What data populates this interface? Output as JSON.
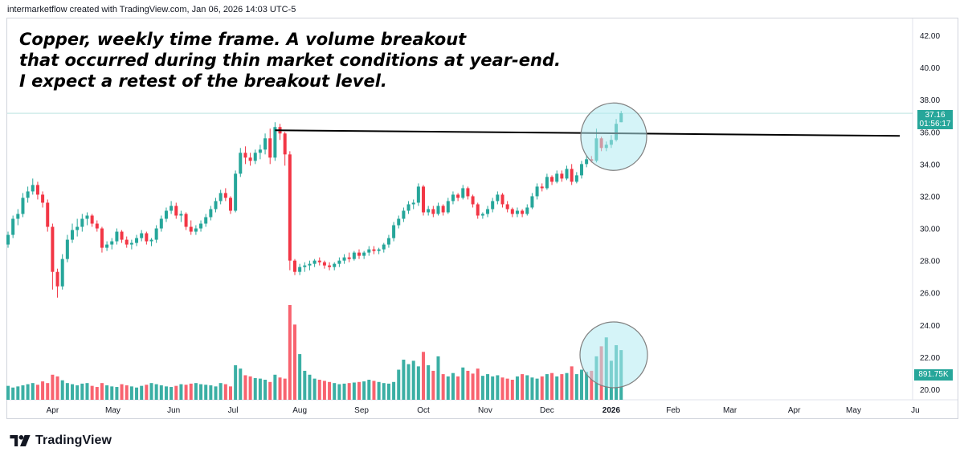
{
  "header": {
    "credit": "intermarketflow created with TradingView.com, Jan 06, 2026 14:03 UTC-5"
  },
  "annotation": {
    "lines": [
      "Copper, weekly time frame. A volume breakout",
      "that occurred during thin market conditions at year-end.",
      "I expect a retest of the breakout level."
    ]
  },
  "badges": {
    "last_price": "37.16",
    "countdown": "01:56:17",
    "last_volume": "891.75K"
  },
  "brand": {
    "name": "TradingView"
  },
  "colors": {
    "up": "#26a69a",
    "down": "#f23645",
    "vol_up": "#26a69a",
    "vol_down": "#f7525f",
    "circle_fill": "#b2ebf2",
    "circle_stroke": "#808080",
    "line": "#000000"
  },
  "chart_data": {
    "type": "candlestick",
    "title": "Copper, weekly time frame",
    "price_axis": {
      "ticks": [
        "42.00",
        "40.00",
        "38.00",
        "36.00",
        "34.00",
        "32.00",
        "30.00",
        "28.00",
        "26.00",
        "24.00",
        "22.00",
        "20.00"
      ],
      "range": [
        19.5,
        43.0
      ]
    },
    "time_axis": {
      "ticks": [
        "Apr",
        "May",
        "Jun",
        "Jul",
        "Aug",
        "Sep",
        "Oct",
        "Nov",
        "Dec",
        "2026",
        "Feb",
        "Mar",
        "Apr",
        "May",
        "Ju"
      ]
    },
    "candles": [
      [
        29.0,
        29.8,
        28.8,
        29.6
      ],
      [
        29.6,
        30.8,
        29.4,
        30.6
      ],
      [
        30.6,
        31.2,
        30.2,
        30.9
      ],
      [
        30.9,
        32.2,
        30.7,
        31.9
      ],
      [
        31.9,
        32.6,
        31.6,
        32.3
      ],
      [
        32.3,
        33.1,
        32.1,
        32.7
      ],
      [
        32.7,
        32.9,
        31.8,
        32.1
      ],
      [
        32.1,
        32.3,
        31.3,
        31.6
      ],
      [
        31.6,
        31.8,
        29.8,
        30.1
      ],
      [
        30.1,
        30.3,
        26.2,
        27.3
      ],
      [
        27.3,
        27.5,
        25.7,
        26.4
      ],
      [
        26.4,
        28.4,
        26.2,
        28.1
      ],
      [
        28.1,
        29.6,
        27.9,
        29.3
      ],
      [
        29.3,
        30.3,
        29.1,
        29.9
      ],
      [
        29.9,
        30.6,
        29.5,
        30.1
      ],
      [
        30.1,
        30.9,
        29.8,
        30.6
      ],
      [
        30.6,
        31.0,
        30.2,
        30.8
      ],
      [
        30.8,
        30.9,
        30.1,
        30.3
      ],
      [
        30.3,
        30.5,
        29.8,
        30.0
      ],
      [
        30.0,
        30.1,
        28.5,
        28.8
      ],
      [
        28.8,
        29.2,
        28.6,
        29.0
      ],
      [
        29.0,
        29.4,
        28.7,
        29.2
      ],
      [
        29.2,
        30.0,
        29.0,
        29.8
      ],
      [
        29.8,
        29.9,
        29.1,
        29.3
      ],
      [
        29.3,
        29.5,
        28.8,
        29.0
      ],
      [
        29.0,
        29.3,
        28.7,
        29.1
      ],
      [
        29.1,
        29.6,
        28.9,
        29.4
      ],
      [
        29.4,
        29.9,
        29.2,
        29.7
      ],
      [
        29.7,
        29.8,
        29.0,
        29.2
      ],
      [
        29.2,
        29.4,
        28.9,
        29.3
      ],
      [
        29.3,
        30.2,
        29.1,
        30.0
      ],
      [
        30.0,
        30.8,
        29.8,
        30.6
      ],
      [
        30.6,
        31.3,
        30.4,
        31.1
      ],
      [
        31.1,
        31.7,
        30.9,
        31.4
      ],
      [
        31.4,
        31.6,
        30.6,
        30.8
      ],
      [
        30.8,
        31.1,
        30.4,
        30.9
      ],
      [
        30.9,
        31.0,
        29.9,
        30.1
      ],
      [
        30.1,
        30.5,
        29.6,
        29.8
      ],
      [
        29.8,
        30.2,
        29.6,
        30.0
      ],
      [
        30.0,
        30.5,
        29.8,
        30.3
      ],
      [
        30.3,
        30.9,
        30.1,
        30.7
      ],
      [
        30.7,
        31.4,
        30.5,
        31.2
      ],
      [
        31.2,
        31.9,
        31.0,
        31.7
      ],
      [
        31.7,
        32.4,
        31.5,
        32.2
      ],
      [
        32.2,
        32.5,
        31.7,
        31.9
      ],
      [
        31.9,
        32.0,
        30.9,
        31.1
      ],
      [
        31.1,
        33.6,
        31.0,
        33.4
      ],
      [
        33.4,
        35.0,
        33.2,
        34.7
      ],
      [
        34.7,
        35.1,
        34.0,
        34.4
      ],
      [
        34.4,
        34.7,
        33.9,
        34.2
      ],
      [
        34.2,
        34.9,
        34.0,
        34.7
      ],
      [
        34.7,
        35.2,
        34.3,
        34.9
      ],
      [
        34.9,
        35.9,
        34.6,
        35.6
      ],
      [
        35.6,
        36.2,
        34.0,
        34.4
      ],
      [
        34.4,
        36.6,
        34.2,
        36.3
      ],
      [
        36.3,
        36.5,
        35.5,
        35.9
      ],
      [
        35.9,
        36.0,
        33.9,
        34.6
      ],
      [
        34.6,
        34.8,
        27.4,
        28.0
      ],
      [
        28.0,
        28.1,
        27.1,
        27.3
      ],
      [
        27.3,
        27.8,
        27.1,
        27.6
      ],
      [
        27.6,
        27.9,
        27.3,
        27.7
      ],
      [
        27.7,
        28.0,
        27.4,
        27.8
      ],
      [
        27.8,
        28.1,
        27.6,
        28.0
      ],
      [
        28.0,
        28.2,
        27.7,
        27.9
      ],
      [
        27.9,
        28.0,
        27.5,
        27.7
      ],
      [
        27.7,
        27.9,
        27.4,
        27.6
      ],
      [
        27.6,
        27.9,
        27.4,
        27.8
      ],
      [
        27.8,
        28.2,
        27.6,
        28.0
      ],
      [
        28.0,
        28.4,
        27.8,
        28.2
      ],
      [
        28.2,
        28.5,
        27.9,
        28.1
      ],
      [
        28.1,
        28.6,
        28.0,
        28.5
      ],
      [
        28.5,
        28.7,
        28.1,
        28.3
      ],
      [
        28.3,
        28.6,
        28.1,
        28.5
      ],
      [
        28.5,
        28.9,
        28.3,
        28.7
      ],
      [
        28.7,
        28.9,
        28.4,
        28.6
      ],
      [
        28.6,
        28.8,
        28.4,
        28.7
      ],
      [
        28.7,
        29.1,
        28.5,
        29.0
      ],
      [
        29.0,
        29.6,
        28.8,
        29.4
      ],
      [
        29.4,
        30.4,
        29.2,
        30.2
      ],
      [
        30.2,
        30.8,
        30.0,
        30.6
      ],
      [
        30.6,
        31.3,
        30.4,
        31.1
      ],
      [
        31.1,
        31.7,
        30.9,
        31.5
      ],
      [
        31.5,
        31.8,
        31.2,
        31.6
      ],
      [
        31.6,
        32.8,
        31.4,
        32.6
      ],
      [
        32.6,
        32.7,
        30.8,
        31.0
      ],
      [
        31.0,
        31.4,
        30.8,
        31.2
      ],
      [
        31.2,
        31.4,
        30.7,
        30.9
      ],
      [
        30.9,
        31.6,
        30.8,
        31.4
      ],
      [
        31.4,
        31.5,
        30.8,
        31.0
      ],
      [
        31.0,
        31.9,
        30.9,
        31.7
      ],
      [
        31.7,
        32.3,
        31.5,
        32.1
      ],
      [
        32.1,
        32.2,
        31.7,
        31.9
      ],
      [
        31.9,
        32.7,
        31.8,
        32.5
      ],
      [
        32.5,
        32.6,
        31.8,
        32.0
      ],
      [
        32.0,
        32.1,
        31.3,
        31.5
      ],
      [
        31.5,
        31.6,
        30.6,
        30.8
      ],
      [
        30.8,
        31.0,
        30.6,
        30.9
      ],
      [
        30.9,
        31.4,
        30.7,
        31.2
      ],
      [
        31.2,
        31.9,
        31.0,
        31.7
      ],
      [
        31.7,
        32.3,
        31.5,
        32.1
      ],
      [
        32.1,
        32.2,
        31.3,
        31.5
      ],
      [
        31.5,
        31.7,
        31.0,
        31.2
      ],
      [
        31.2,
        31.3,
        30.7,
        30.9
      ],
      [
        30.9,
        31.3,
        30.7,
        31.1
      ],
      [
        31.1,
        31.2,
        30.7,
        30.9
      ],
      [
        30.9,
        31.5,
        30.8,
        31.3
      ],
      [
        31.3,
        32.2,
        31.2,
        32.0
      ],
      [
        32.0,
        32.8,
        31.8,
        32.6
      ],
      [
        32.6,
        32.8,
        32.3,
        32.5
      ],
      [
        32.5,
        33.4,
        32.4,
        33.2
      ],
      [
        33.2,
        33.3,
        32.7,
        32.9
      ],
      [
        32.9,
        33.6,
        32.8,
        33.4
      ],
      [
        33.4,
        33.6,
        32.9,
        33.1
      ],
      [
        33.1,
        33.9,
        33.0,
        33.7
      ],
      [
        33.7,
        34.0,
        32.7,
        32.9
      ],
      [
        32.9,
        33.5,
        32.8,
        33.3
      ],
      [
        33.3,
        34.2,
        33.1,
        34.0
      ],
      [
        34.0,
        34.5,
        33.8,
        34.3
      ],
      [
        34.3,
        34.5,
        34.1,
        34.2
      ],
      [
        34.2,
        36.2,
        34.1,
        35.6
      ],
      [
        35.6,
        35.7,
        34.8,
        35.0
      ],
      [
        35.0,
        35.4,
        34.8,
        35.2
      ],
      [
        35.2,
        35.8,
        35.0,
        35.5
      ],
      [
        35.5,
        36.8,
        35.4,
        36.5
      ],
      [
        36.6,
        37.3,
        36.6,
        37.16
      ]
    ],
    "volumes_k": [
      250,
      220,
      240,
      260,
      280,
      300,
      270,
      330,
      300,
      450,
      420,
      350,
      300,
      280,
      260,
      290,
      300,
      250,
      230,
      300,
      260,
      240,
      230,
      280,
      260,
      240,
      220,
      250,
      270,
      300,
      280,
      260,
      240,
      230,
      250,
      280,
      270,
      290,
      300,
      280,
      270,
      260,
      240,
      300,
      280,
      240,
      620,
      560,
      440,
      420,
      390,
      380,
      360,
      320,
      450,
      400,
      380,
      1700,
      1350,
      820,
      520,
      450,
      380,
      360,
      340,
      320,
      300,
      280,
      290,
      300,
      310,
      320,
      330,
      360,
      340,
      320,
      300,
      290,
      320,
      540,
      720,
      640,
      700,
      600,
      860,
      620,
      520,
      780,
      460,
      420,
      480,
      420,
      580,
      520,
      470,
      560,
      430,
      460,
      420,
      440,
      400,
      380,
      360,
      420,
      460,
      440,
      400,
      380,
      420,
      460,
      480,
      420,
      460,
      480,
      600,
      460,
      540,
      500,
      520,
      780,
      960,
      1120,
      700,
      980,
      891.75
    ],
    "key_level": 36.0,
    "last_price": 37.16,
    "last_volume": "891.75K"
  }
}
